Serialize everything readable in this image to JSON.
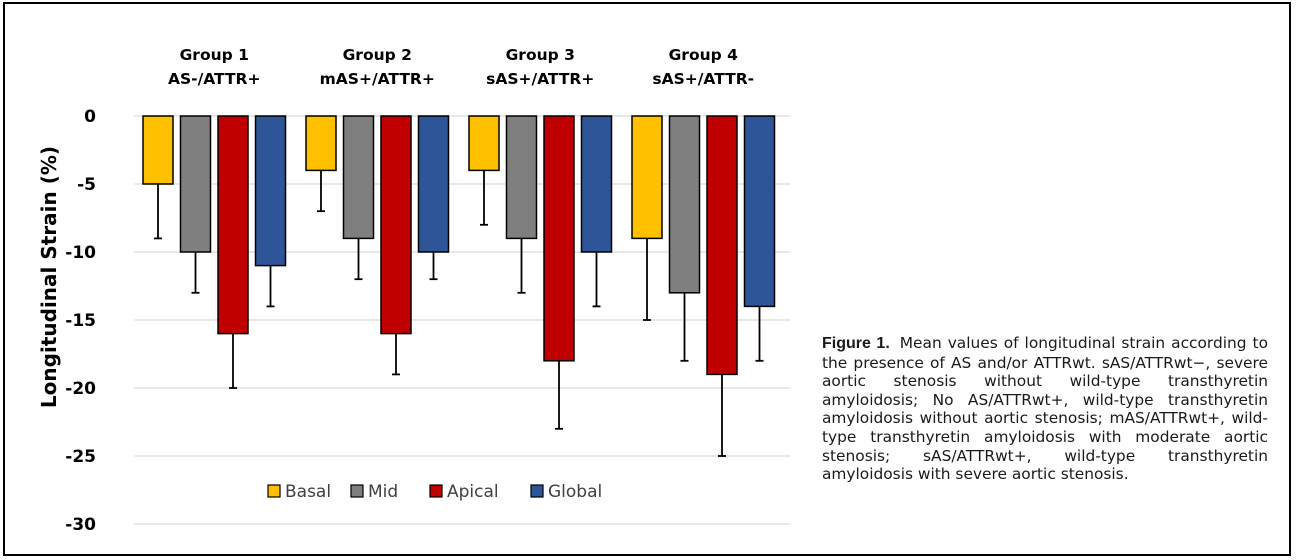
{
  "chart_data": {
    "type": "bar",
    "ylabel": "Longitudinal Strain (%)",
    "ylim": [
      -30,
      0
    ],
    "yticks": [
      0,
      -5,
      -10,
      -15,
      -20,
      -25,
      -30
    ],
    "groups": [
      {
        "line1": "Group 1",
        "line2": "AS-/ATTR+"
      },
      {
        "line1": "Group 2",
        "line2": "mAS+/ATTR+"
      },
      {
        "line1": "Group 3",
        "line2": "sAS+/ATTR+"
      },
      {
        "line1": "Group 4",
        "line2": "sAS+/ATTR-"
      }
    ],
    "series": [
      {
        "name": "Basal",
        "color": "#FFC000",
        "values": [
          -5,
          -4,
          -4,
          -9
        ],
        "error_low": [
          -9,
          -7,
          -8,
          -15
        ]
      },
      {
        "name": "Mid",
        "color": "#7F7F7F",
        "values": [
          -10,
          -9,
          -9,
          -13
        ],
        "error_low": [
          -13,
          -12,
          -13,
          -18
        ]
      },
      {
        "name": "Apical",
        "color": "#C00000",
        "values": [
          -16,
          -16,
          -18,
          -19
        ],
        "error_low": [
          -20,
          -19,
          -23,
          -25
        ]
      },
      {
        "name": "Global",
        "color": "#2E5597",
        "values": [
          -11,
          -10,
          -10,
          -14
        ],
        "error_low": [
          -14,
          -12,
          -14,
          -18
        ]
      }
    ],
    "legend_position": "bottom-center",
    "grid": true
  },
  "caption": {
    "label": "Figure 1.",
    "text": "Mean values of longitudinal strain according to the presence of AS and/or ATTRwt. sAS/ATTRwt−, severe aortic stenosis without wild-type transthyretin amyloidosis; No AS/ATTRwt+, wild-type transthyretin amyloidosis without aortic stenosis; mAS/ATTRwt+, wild-type transthyretin amyloidosis with moderate aortic stenosis; sAS/ATTRwt+, wild-type transthyretin amyloidosis with severe aortic stenosis."
  }
}
